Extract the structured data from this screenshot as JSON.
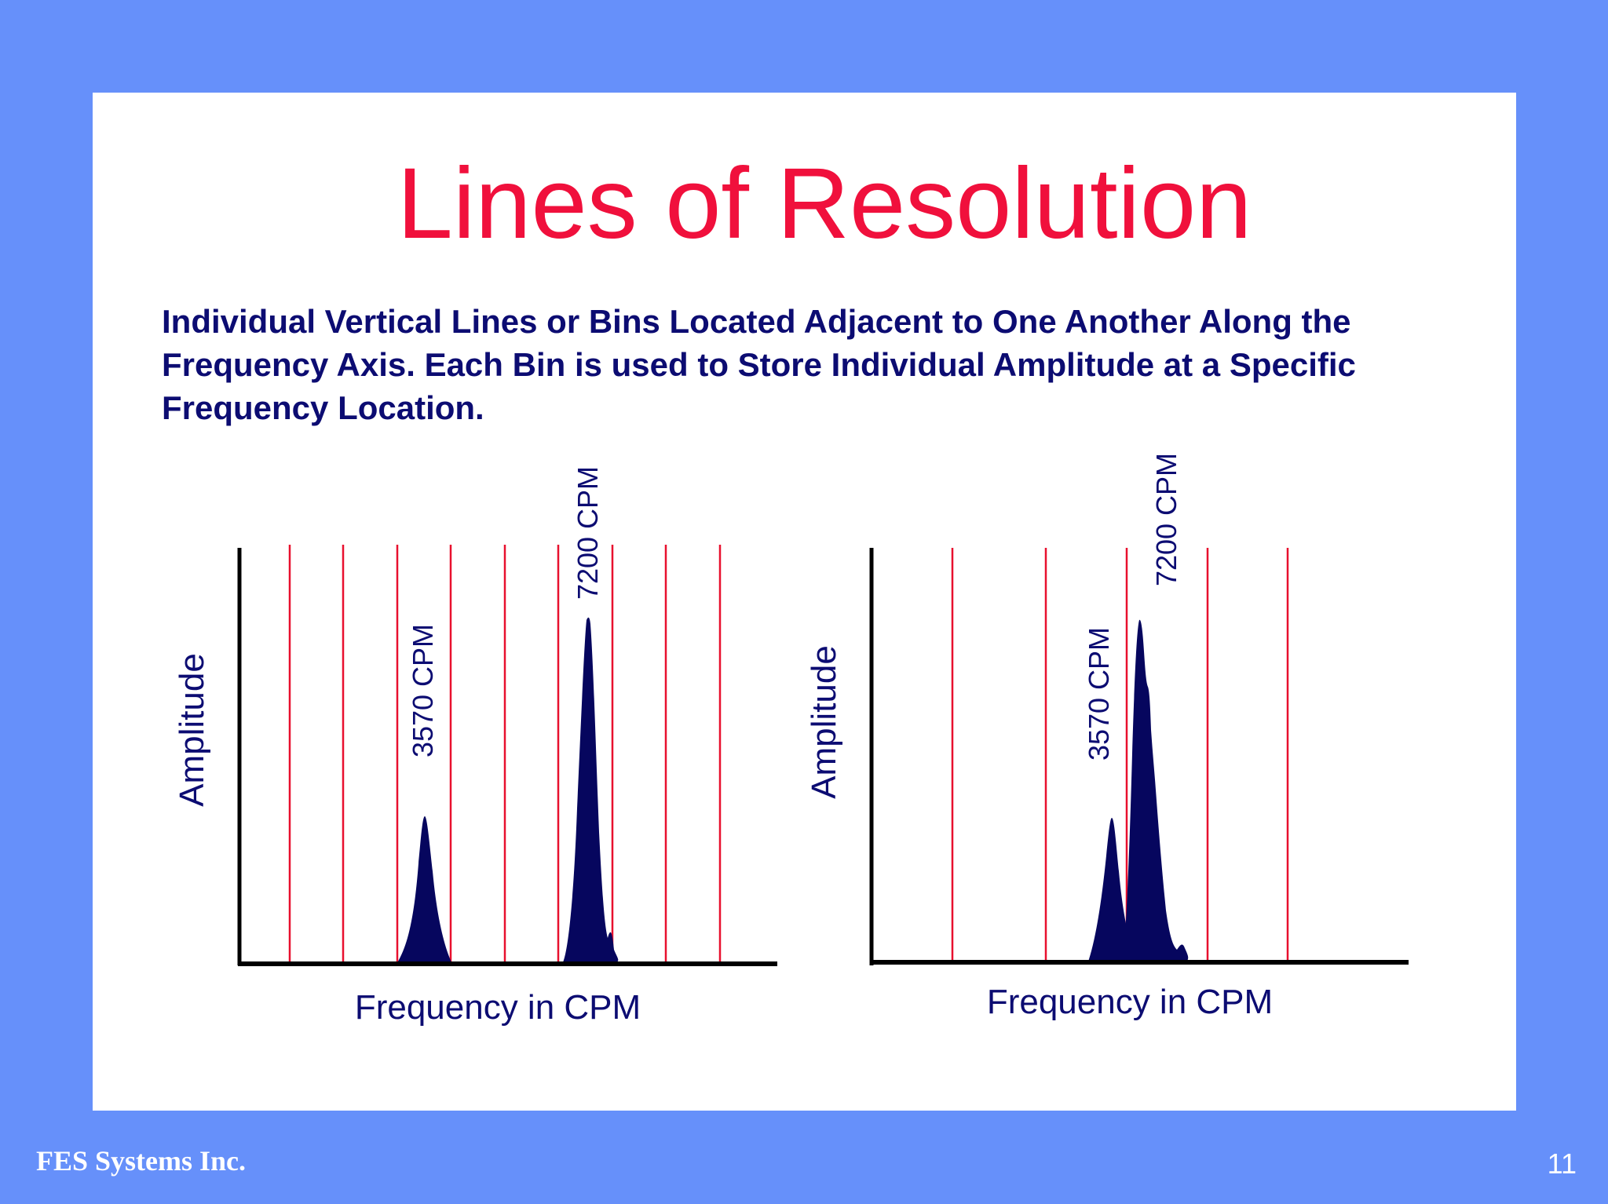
{
  "slide": {
    "title": "Lines of Resolution",
    "description": "Individual Vertical Lines or Bins Located Adjacent to One Another Along the Frequency Axis.  Each Bin is used to Store Individual Amplitude at a Specific Frequency Location.",
    "footer_company": "FES Systems Inc.",
    "page_number": "11"
  },
  "colors": {
    "background": "#6690fa",
    "panel": "#ffffff",
    "title": "#f0103c",
    "text": "#0c0c72",
    "bin_line": "#e8102e",
    "peak_fill": "#06065e",
    "axis": "#000000"
  },
  "diagrams": [
    {
      "name": "higher-resolution",
      "x_label": "Frequency in CPM",
      "y_label": "Amplitude",
      "bin_count": 9,
      "peaks": [
        {
          "label": "3570 CPM",
          "relative_height": 0.36
        },
        {
          "label": "7200 CPM",
          "relative_height": 0.83
        }
      ]
    },
    {
      "name": "lower-resolution",
      "x_label": "Frequency in CPM",
      "y_label": "Amplitude",
      "bin_count": 5,
      "peaks": [
        {
          "label": "3570 CPM",
          "relative_height": 0.35
        },
        {
          "label": "7200 CPM",
          "relative_height": 0.82
        }
      ]
    }
  ]
}
